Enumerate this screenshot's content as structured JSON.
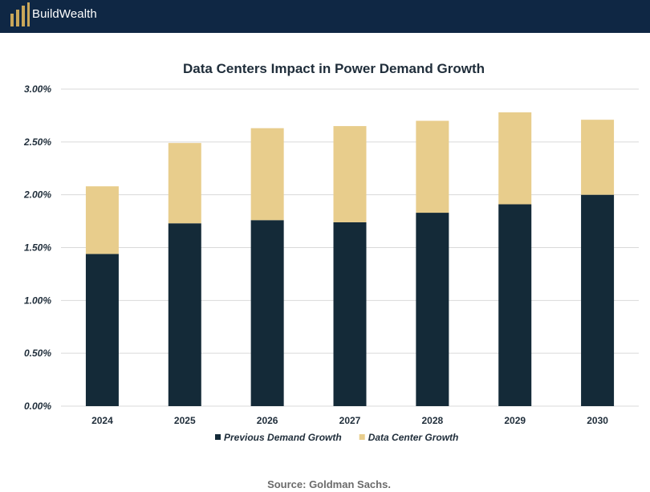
{
  "header": {
    "brand": "BuildWealth",
    "logo_icon": "buildwealth-bars-icon",
    "background": "#0f2744",
    "logo_color": "#c9a75a"
  },
  "chart_data": {
    "type": "bar",
    "stacked": true,
    "title": "Data Centers Impact in Power Demand Growth",
    "xlabel": "",
    "ylabel": "",
    "categories": [
      "2024",
      "2025",
      "2026",
      "2027",
      "2028",
      "2029",
      "2030"
    ],
    "series": [
      {
        "name": "Previous Demand Growth",
        "color": "#142a38",
        "values": [
          1.44,
          1.73,
          1.76,
          1.74,
          1.83,
          1.91,
          2.0
        ]
      },
      {
        "name": "Data Center Growth",
        "color": "#e8cd8c",
        "values": [
          0.64,
          0.76,
          0.87,
          0.91,
          0.87,
          0.87,
          0.71
        ]
      }
    ],
    "ylim": [
      0,
      3.0
    ],
    "yticks": [
      "0.00%",
      "0.50%",
      "1.00%",
      "1.50%",
      "2.00%",
      "2.50%",
      "3.00%"
    ],
    "grid": true,
    "legend": "bottom-center"
  },
  "source": "Source: Goldman Sachs."
}
